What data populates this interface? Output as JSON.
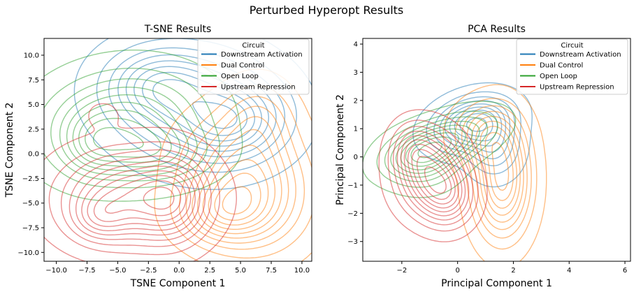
{
  "figure": {
    "suptitle": "Perturbed Hyperopt Results"
  },
  "colors": {
    "Downstream Activation": "#1f77b4",
    "Dual Control": "#ff7f0e",
    "Open Loop": "#2ca02c",
    "Upstream Repression": "#d62728"
  },
  "chart_data": [
    {
      "type": "kde-contour",
      "title": "T-SNE Results",
      "xlabel": "TSNE Component 1",
      "ylabel": "TSNE Component 2",
      "xlim": [
        -11,
        10.8
      ],
      "ylim": [
        -10.9,
        11.7
      ],
      "xticks": [
        -10.0,
        -7.5,
        -5.0,
        -2.5,
        0.0,
        2.5,
        5.0,
        7.5,
        10.0
      ],
      "yticks": [
        -10.0,
        -7.5,
        -5.0,
        -2.5,
        0.0,
        2.5,
        5.0,
        7.5,
        10.0
      ],
      "tick_format": "1dp",
      "legend": {
        "title": "Circuit",
        "position": "top-right",
        "entries": [
          "Downstream Activation",
          "Dual Control",
          "Open Loop",
          "Upstream Repression"
        ]
      },
      "series": [
        {
          "name": "Downstream Activation",
          "levels": 9,
          "blobs": [
            {
              "x": 1.5,
              "y": 5.0,
              "sx": 4.2,
              "sy": 3.6,
              "w": 1.0,
              "rot": -0.3
            },
            {
              "x": 4.5,
              "y": 3.0,
              "sx": 2.5,
              "sy": 2.2,
              "w": 0.6,
              "rot": 0.4
            },
            {
              "x": -2.0,
              "y": 7.0,
              "sx": 2.5,
              "sy": 2.2,
              "w": 0.5,
              "rot": 0.0
            }
          ]
        },
        {
          "name": "Dual Control",
          "levels": 10,
          "blobs": [
            {
              "x": 5.5,
              "y": -3.0,
              "sx": 3.0,
              "sy": 4.0,
              "w": 1.0,
              "rot": 0.2
            },
            {
              "x": 3.5,
              "y": -6.0,
              "sx": 2.3,
              "sy": 2.0,
              "w": 0.55,
              "rot": 0.0
            },
            {
              "x": 6.5,
              "y": 3.5,
              "sx": 1.8,
              "sy": 2.6,
              "w": 0.35,
              "rot": 0.0
            }
          ]
        },
        {
          "name": "Open Loop",
          "levels": 9,
          "blobs": [
            {
              "x": -4.5,
              "y": 3.0,
              "sx": 4.0,
              "sy": 3.2,
              "w": 1.0,
              "rot": 0.2
            },
            {
              "x": -2.0,
              "y": 0.0,
              "sx": 3.0,
              "sy": 1.8,
              "w": 0.6,
              "rot": 0.0
            },
            {
              "x": -7.0,
              "y": 1.0,
              "sx": 1.6,
              "sy": 2.0,
              "w": 0.4,
              "rot": 0.0
            }
          ]
        },
        {
          "name": "Upstream Repression",
          "levels": 10,
          "blobs": [
            {
              "x": -4.0,
              "y": -4.5,
              "sx": 3.6,
              "sy": 3.0,
              "w": 1.0,
              "rot": 0.0
            },
            {
              "x": -0.5,
              "y": -4.5,
              "sx": 1.8,
              "sy": 2.8,
              "w": 0.6,
              "rot": 0.0
            },
            {
              "x": -6.5,
              "y": -6.5,
              "sx": 1.5,
              "sy": 1.5,
              "w": 0.35,
              "rot": 0.0
            },
            {
              "x": -6.2,
              "y": 4.0,
              "sx": 0.8,
              "sy": 0.8,
              "w": 0.15,
              "rot": 0.0
            }
          ]
        }
      ]
    },
    {
      "type": "kde-contour",
      "title": "PCA Results",
      "xlabel": "Principal Component 1",
      "ylabel": "Principal Component 2",
      "xlim": [
        -3.4,
        6.2
      ],
      "ylim": [
        -3.7,
        4.2
      ],
      "xticks": [
        -2,
        0,
        2,
        4,
        6
      ],
      "yticks": [
        -3,
        -2,
        -1,
        0,
        1,
        2,
        3,
        4
      ],
      "tick_format": "int",
      "legend": {
        "title": "Circuit",
        "position": "top-right",
        "entries": [
          "Downstream Activation",
          "Dual Control",
          "Open Loop",
          "Upstream Repression"
        ]
      },
      "series": [
        {
          "name": "Downstream Activation",
          "levels": 9,
          "blobs": [
            {
              "x": 0.5,
              "y": 1.2,
              "sx": 0.9,
              "sy": 0.55,
              "w": 1.0,
              "rot": 0.3
            },
            {
              "x": 1.3,
              "y": 0.4,
              "sx": 0.6,
              "sy": 0.7,
              "w": 0.5,
              "rot": 0.0
            }
          ]
        },
        {
          "name": "Dual Control",
          "levels": 9,
          "blobs": [
            {
              "x": 1.6,
              "y": -0.8,
              "sx": 0.65,
              "sy": 1.3,
              "w": 1.0,
              "rot": 0.0
            },
            {
              "x": 1.0,
              "y": 0.8,
              "sx": 0.7,
              "sy": 0.7,
              "w": 0.5,
              "rot": 0.0
            }
          ]
        },
        {
          "name": "Open Loop",
          "levels": 9,
          "blobs": [
            {
              "x": -0.6,
              "y": 0.5,
              "sx": 1.2,
              "sy": 0.5,
              "w": 1.0,
              "rot": 0.35
            },
            {
              "x": -1.3,
              "y": -0.2,
              "sx": 0.8,
              "sy": 0.6,
              "w": 0.5,
              "rot": 0.0
            }
          ]
        },
        {
          "name": "Upstream Repression",
          "levels": 10,
          "blobs": [
            {
              "x": -1.0,
              "y": -0.6,
              "sx": 0.75,
              "sy": 0.9,
              "w": 1.0,
              "rot": 0.0
            },
            {
              "x": -0.3,
              "y": -1.4,
              "sx": 0.6,
              "sy": 0.7,
              "w": 0.6,
              "rot": 0.0
            },
            {
              "x": -1.6,
              "y": 0.3,
              "sx": 0.5,
              "sy": 0.6,
              "w": 0.4,
              "rot": 0.0
            }
          ]
        }
      ]
    }
  ]
}
